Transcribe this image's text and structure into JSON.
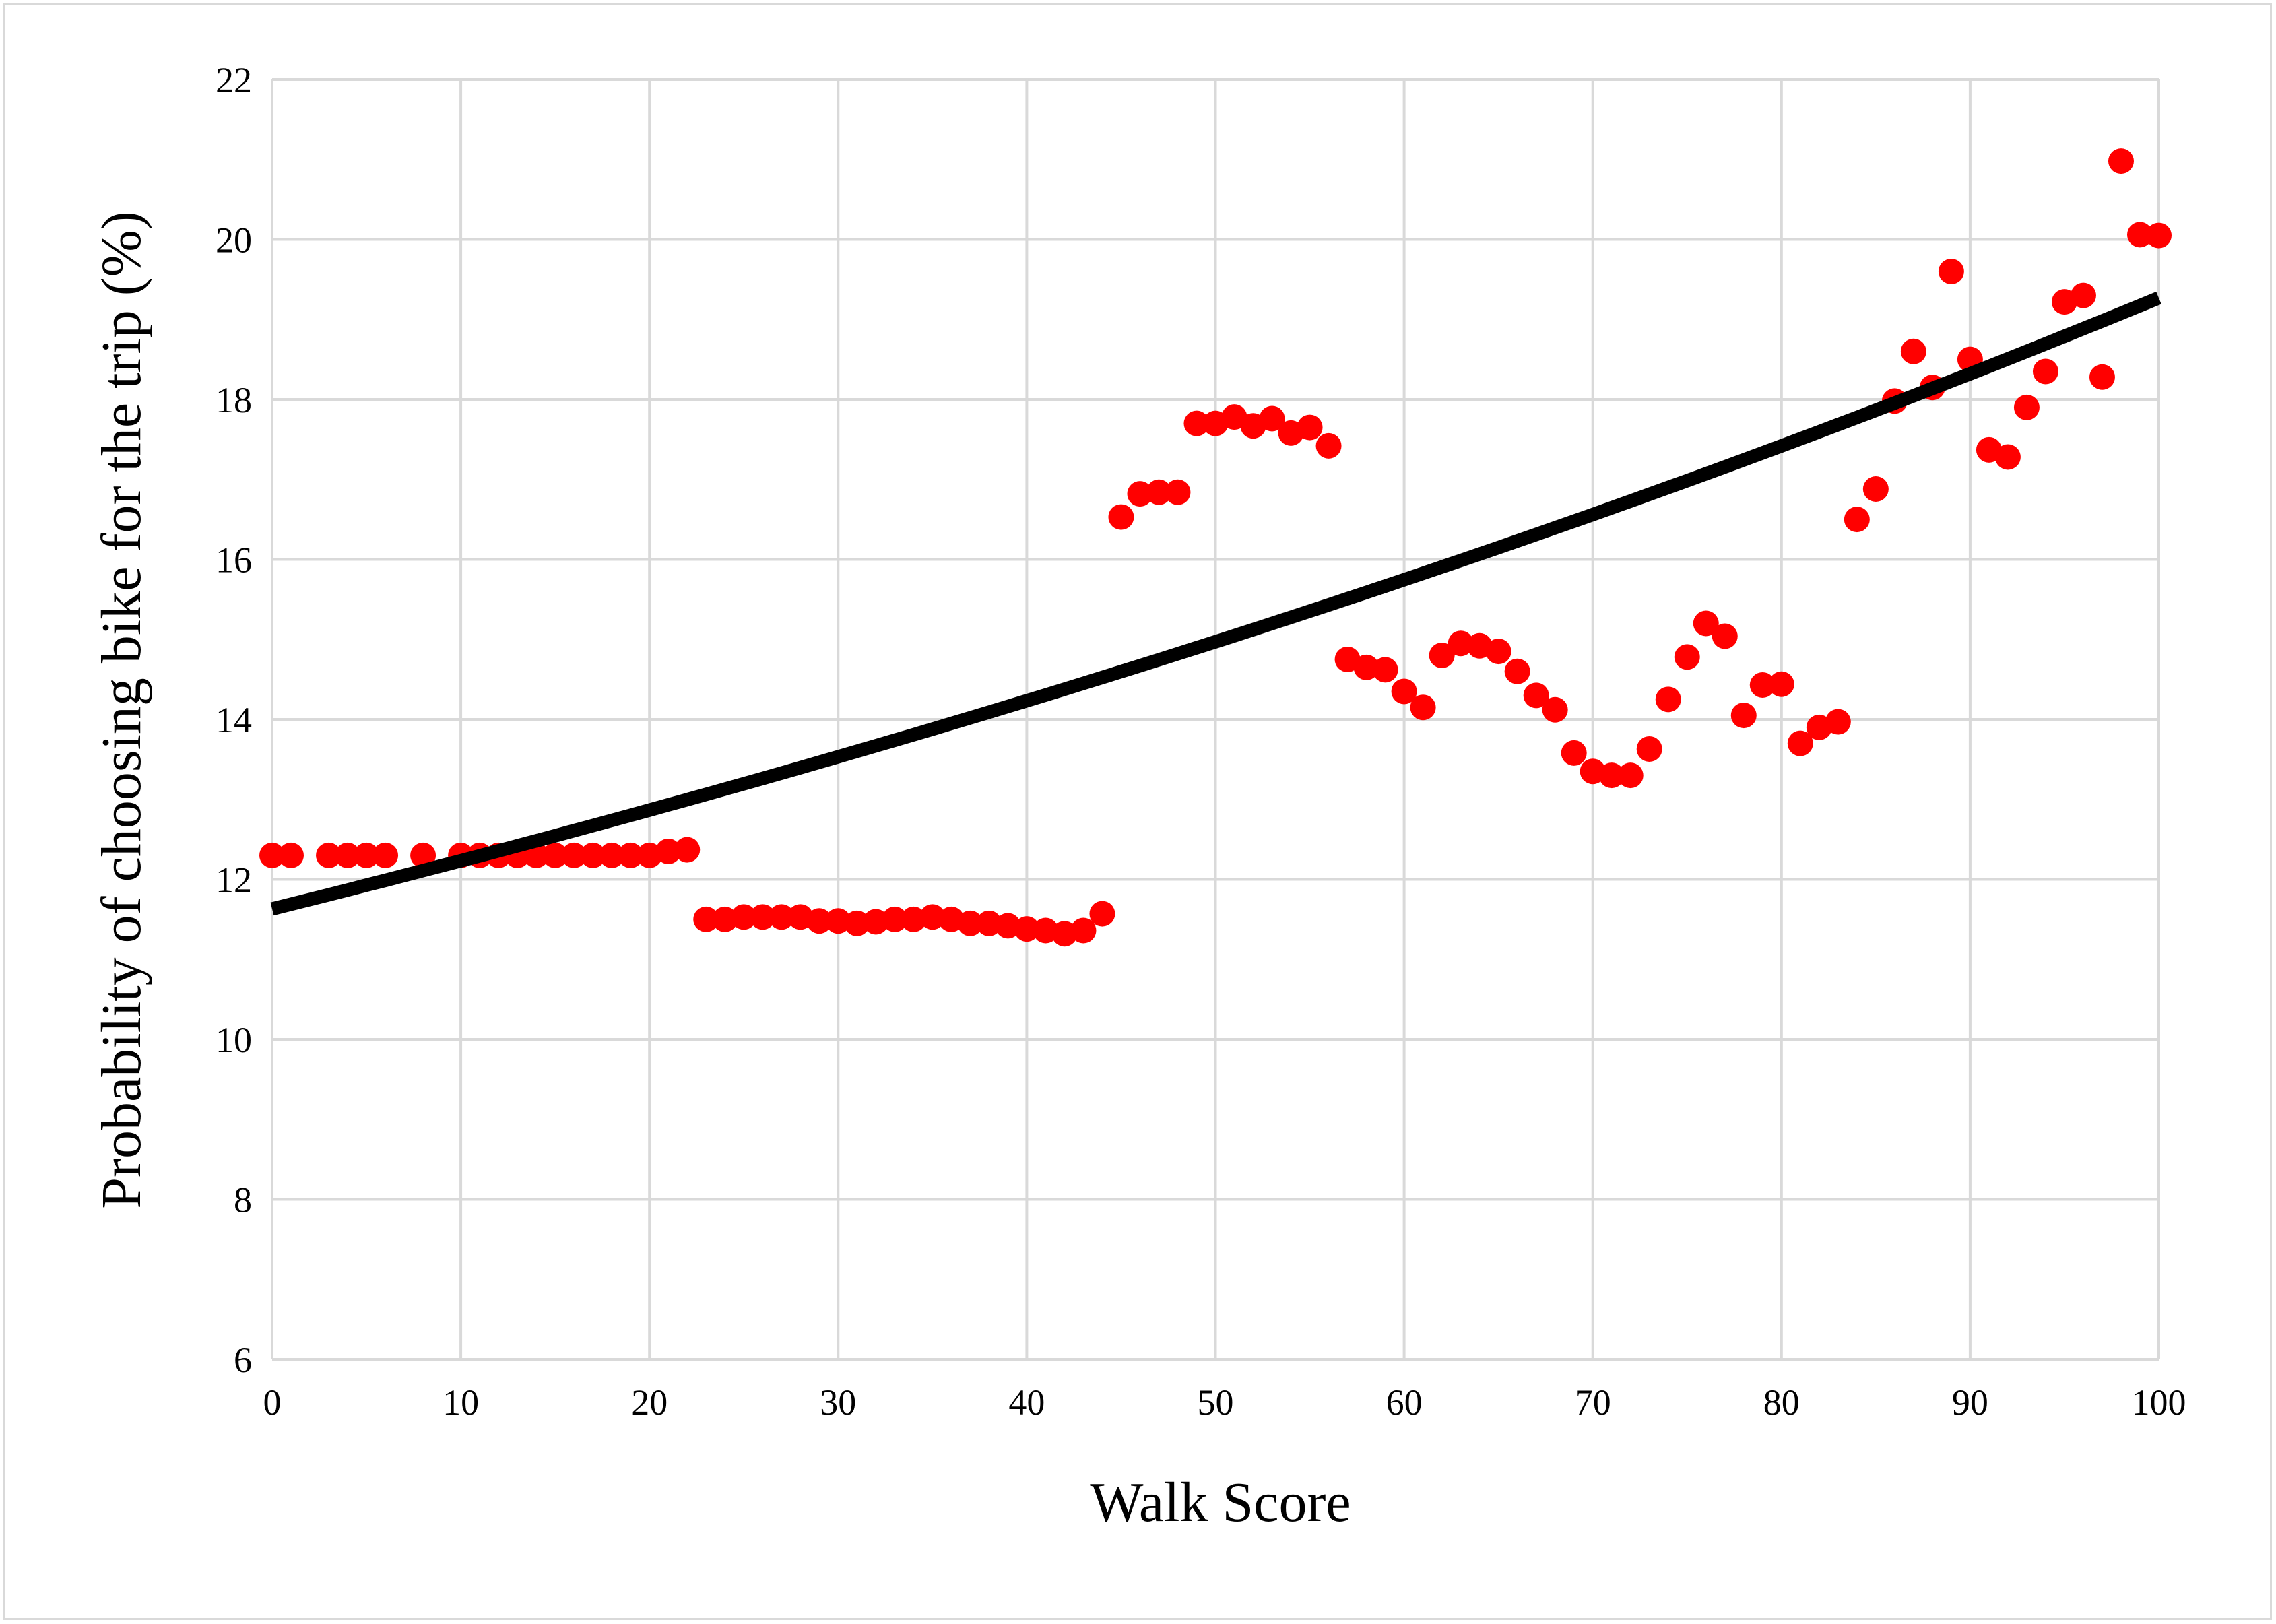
{
  "chart_data": {
    "type": "scatter",
    "title": "",
    "xlabel": "Walk Score",
    "ylabel": "Probability of choosing bike for the trip (%)",
    "xlim": [
      0,
      100
    ],
    "ylim": [
      6,
      22
    ],
    "x_ticks": [
      0,
      10,
      20,
      30,
      40,
      50,
      60,
      70,
      80,
      90,
      100
    ],
    "y_ticks": [
      6,
      8,
      10,
      12,
      14,
      16,
      18,
      20,
      22
    ],
    "grid": true,
    "legend": "none",
    "series": [
      {
        "kind": "points",
        "color": "#ff0000",
        "x": [
          0,
          1,
          3,
          4,
          5,
          6,
          8,
          10,
          11,
          12,
          13,
          14,
          15,
          16,
          17,
          18,
          19,
          20,
          21,
          22,
          23,
          24,
          25,
          26,
          27,
          28,
          29,
          30,
          31,
          32,
          33,
          34,
          35,
          36,
          37,
          38,
          39,
          40,
          41,
          42,
          43,
          44,
          45,
          46,
          47,
          48,
          49,
          50,
          51,
          52,
          53,
          54,
          55,
          56,
          57,
          58,
          59,
          60,
          61,
          62,
          63,
          64,
          65,
          66,
          67,
          68,
          69,
          70,
          71,
          72,
          73,
          74,
          75,
          76,
          77,
          78,
          79,
          80,
          81,
          82,
          83,
          84,
          85,
          86,
          87,
          88,
          89,
          90,
          91,
          92,
          93,
          94,
          95,
          96,
          97,
          98,
          99,
          100
        ],
        "y": [
          12.3,
          12.3,
          12.3,
          12.3,
          12.3,
          12.3,
          12.3,
          12.3,
          12.3,
          12.3,
          12.3,
          12.3,
          12.3,
          12.3,
          12.3,
          12.3,
          12.3,
          12.3,
          12.35,
          12.37,
          11.5,
          11.5,
          11.53,
          11.53,
          11.53,
          11.53,
          11.48,
          11.48,
          11.45,
          11.47,
          11.5,
          11.5,
          11.53,
          11.5,
          11.45,
          11.45,
          11.42,
          11.38,
          11.36,
          11.32,
          11.36,
          11.57,
          16.53,
          16.82,
          16.84,
          16.84,
          17.7,
          17.7,
          17.78,
          17.67,
          17.76,
          17.58,
          17.65,
          17.42,
          14.75,
          14.65,
          14.62,
          14.35,
          14.15,
          14.8,
          14.95,
          14.92,
          14.85,
          14.6,
          14.3,
          14.12,
          13.58,
          13.35,
          13.3,
          13.3,
          13.63,
          14.25,
          14.78,
          15.2,
          15.04,
          14.05,
          14.43,
          14.44,
          13.7,
          13.9,
          13.97,
          16.5,
          16.88,
          17.98,
          18.6,
          18.15,
          19.6,
          18.5,
          17.37,
          17.28,
          17.9,
          18.35,
          19.22,
          19.3,
          18.28,
          20.98,
          20.06,
          20.05
        ]
      },
      {
        "kind": "trendline",
        "type": "exponential",
        "color": "#000000",
        "y_at_0": 11.63,
        "y_at_100": 19.27
      }
    ]
  }
}
